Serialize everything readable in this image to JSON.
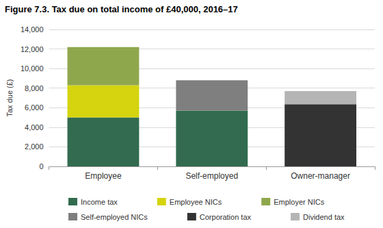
{
  "chart_data": {
    "type": "bar",
    "title": "Figure 7.3. Tax due on total income of £40,000, 2016–17",
    "ylabel": "Tax due (£)",
    "categories": [
      "Employee",
      "Self-employed",
      "Owner-manager"
    ],
    "series": [
      {
        "name": "Income tax",
        "color": "#326b4f",
        "values": [
          5000,
          5700,
          null
        ]
      },
      {
        "name": "Employee NICs",
        "color": "#d5d40f",
        "values": [
          3300,
          null,
          null
        ]
      },
      {
        "name": "Employer NICs",
        "color": "#8fa74c",
        "values": [
          3900,
          null,
          null
        ]
      },
      {
        "name": "Self-employed NICs",
        "color": "#7f7f7f",
        "values": [
          null,
          3100,
          null
        ]
      },
      {
        "name": "Corporation tax",
        "color": "#333333",
        "values": [
          null,
          null,
          6350
        ]
      },
      {
        "name": "Dividend tax",
        "color": "#b5b5b5",
        "values": [
          null,
          null,
          1350
        ]
      }
    ],
    "ylim": [
      0,
      14000
    ],
    "yticks": [
      0,
      {
        "value": 2000,
        "label": "2,000"
      },
      {
        "value": 4000,
        "label": "4,000"
      },
      {
        "value": 6000,
        "label": "6,000"
      },
      {
        "value": 8000,
        "label": "8,000"
      },
      {
        "value": 10000,
        "label": "10,000"
      },
      {
        "value": 12000,
        "label": "12,000"
      },
      {
        "value": 14000,
        "label": "14,000"
      }
    ],
    "stacked": true,
    "grid": true,
    "legend": "bottom"
  }
}
